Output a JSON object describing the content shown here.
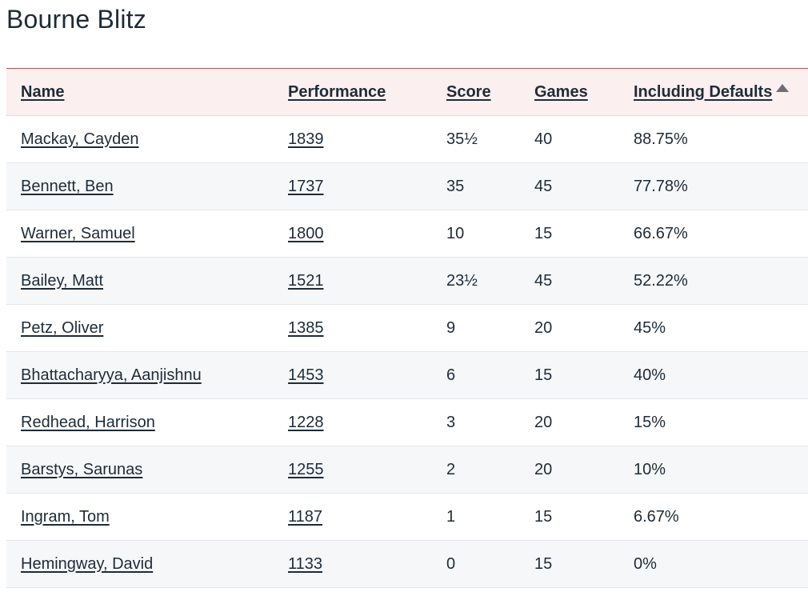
{
  "title": "Bourne Blitz",
  "columns": {
    "name": "Name",
    "performance": "Performance",
    "score": "Score",
    "games": "Games",
    "including_defaults": "Including Defaults"
  },
  "sort": {
    "column": "including_defaults",
    "direction": "ascending-indicator",
    "icon": "triangle-up-icon"
  },
  "rows": [
    {
      "name": "Mackay, Cayden",
      "performance": "1839",
      "score": "35½",
      "games": "40",
      "including_defaults": "88.75%"
    },
    {
      "name": "Bennett, Ben",
      "performance": "1737",
      "score": "35",
      "games": "45",
      "including_defaults": "77.78%"
    },
    {
      "name": "Warner, Samuel",
      "performance": "1800",
      "score": "10",
      "games": "15",
      "including_defaults": "66.67%"
    },
    {
      "name": "Bailey, Matt",
      "performance": "1521",
      "score": "23½",
      "games": "45",
      "including_defaults": "52.22%"
    },
    {
      "name": "Petz, Oliver",
      "performance": "1385",
      "score": "9",
      "games": "20",
      "including_defaults": "45%"
    },
    {
      "name": "Bhattacharyya, Aanjishnu",
      "performance": "1453",
      "score": "6",
      "games": "15",
      "including_defaults": "40%"
    },
    {
      "name": "Redhead, Harrison",
      "performance": "1228",
      "score": "3",
      "games": "20",
      "including_defaults": "15%"
    },
    {
      "name": "Barstys, Sarunas",
      "performance": "1255",
      "score": "2",
      "games": "20",
      "including_defaults": "10%"
    },
    {
      "name": "Ingram, Tom",
      "performance": "1187",
      "score": "1",
      "games": "15",
      "including_defaults": "6.67%"
    },
    {
      "name": "Hemingway, David",
      "performance": "1133",
      "score": "0",
      "games": "15",
      "including_defaults": "0%"
    }
  ],
  "colors": {
    "header_bg": "#fbefef",
    "header_border": "#b5565a",
    "stripe": "#f6f7f9",
    "text": "#1e2b38"
  }
}
